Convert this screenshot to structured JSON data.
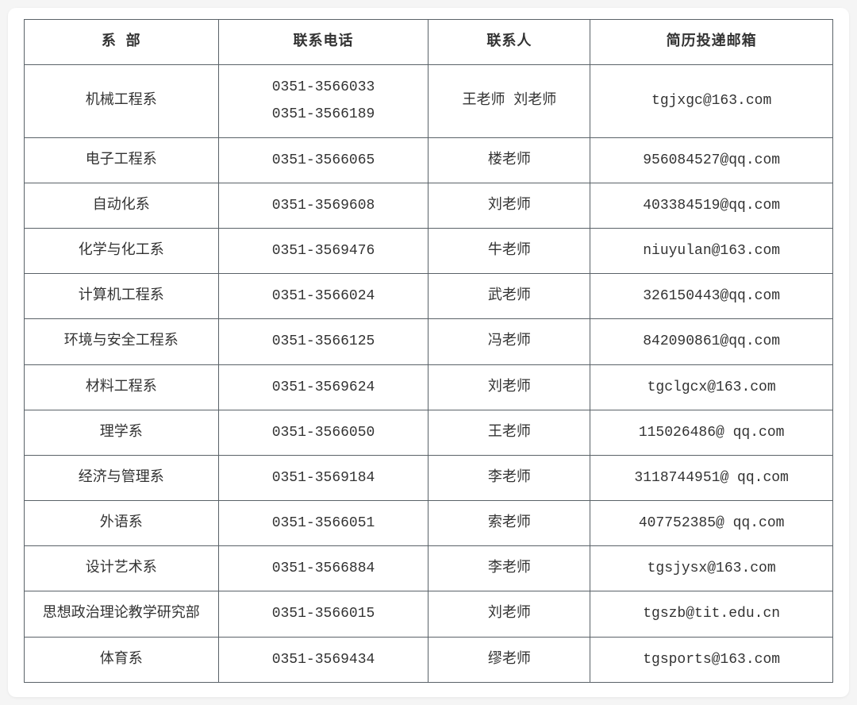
{
  "table": {
    "columns": [
      "系 部",
      "联系电话",
      "联系人",
      "简历投递邮箱"
    ],
    "rows": [
      {
        "dept": "机械工程系",
        "phone": "0351-3566033\n0351-3566189",
        "contact": "王老师 刘老师",
        "email": "tgjxgc@163.com"
      },
      {
        "dept": "电子工程系",
        "phone": "0351-3566065",
        "contact": "楼老师",
        "email": "956084527@qq.com"
      },
      {
        "dept": "自动化系",
        "phone": "0351-3569608",
        "contact": "刘老师",
        "email": "403384519@qq.com"
      },
      {
        "dept": "化学与化工系",
        "phone": "0351-3569476",
        "contact": "牛老师",
        "email": "niuyulan@163.com"
      },
      {
        "dept": "计算机工程系",
        "phone": "0351-3566024",
        "contact": "武老师",
        "email": "326150443@qq.com"
      },
      {
        "dept": "环境与安全工程系",
        "phone": "0351-3566125",
        "contact": "冯老师",
        "email": "842090861@qq.com"
      },
      {
        "dept": "材料工程系",
        "phone": "0351-3569624",
        "contact": "刘老师",
        "email": "tgclgcx@163.com"
      },
      {
        "dept": "理学系",
        "phone": "0351-3566050",
        "contact": "王老师",
        "email": "115026486@  qq.com"
      },
      {
        "dept": "经济与管理系",
        "phone": "0351-3569184",
        "contact": "李老师",
        "email": "3118744951@  qq.com"
      },
      {
        "dept": "外语系",
        "phone": "0351-3566051",
        "contact": "索老师",
        "email": "407752385@  qq.com"
      },
      {
        "dept": "设计艺术系",
        "phone": "0351-3566884",
        "contact": "李老师",
        "email": "tgsjysx@163.com"
      },
      {
        "dept": "思想政治理论教学研究部",
        "phone": "0351-3566015",
        "contact": "刘老师",
        "email": "tgszb@tit.edu.cn"
      },
      {
        "dept": "体育系",
        "phone": "0351-3569434",
        "contact": "缪老师",
        "email": "tgsports@163.com"
      }
    ],
    "border_color": "#5a6268",
    "text_color": "#333333",
    "background_color": "#ffffff",
    "font_size": 18
  }
}
